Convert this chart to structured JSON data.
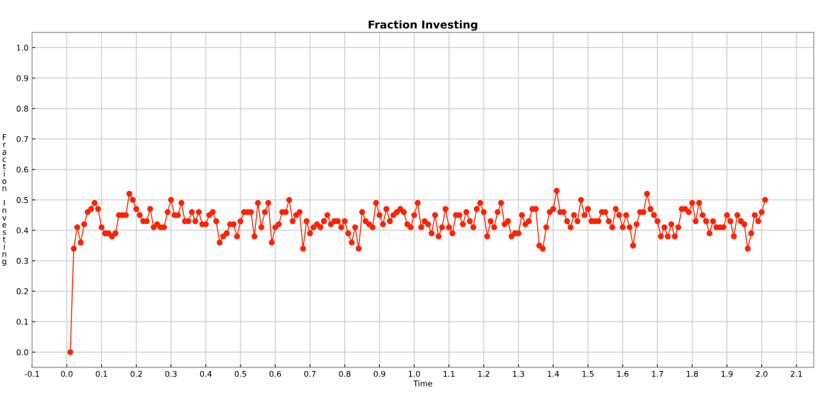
{
  "chart_data": {
    "type": "line",
    "title": "Fraction Investing",
    "xlabel": "Time",
    "ylabel": "Fraction Investing",
    "x": [
      0.01,
      0.02,
      0.03,
      0.04,
      0.05,
      0.06,
      0.07,
      0.08,
      0.09,
      0.1,
      0.11,
      0.12,
      0.13,
      0.14,
      0.15,
      0.16,
      0.17,
      0.18,
      0.19,
      0.2,
      0.21,
      0.22,
      0.23,
      0.24,
      0.25,
      0.26,
      0.27,
      0.28,
      0.29,
      0.3,
      0.31,
      0.32,
      0.33,
      0.34,
      0.35,
      0.36,
      0.37,
      0.38,
      0.39,
      0.4,
      0.41,
      0.42,
      0.43,
      0.44,
      0.45,
      0.46,
      0.47,
      0.48,
      0.49,
      0.5,
      0.51,
      0.52,
      0.53,
      0.54,
      0.55,
      0.56,
      0.57,
      0.58,
      0.59,
      0.6,
      0.61,
      0.62,
      0.63,
      0.64,
      0.65,
      0.66,
      0.67,
      0.68,
      0.69,
      0.7,
      0.71,
      0.72,
      0.73,
      0.74,
      0.75,
      0.76,
      0.77,
      0.78,
      0.79,
      0.8,
      0.81,
      0.82,
      0.83,
      0.84,
      0.85,
      0.86,
      0.87,
      0.88,
      0.89,
      0.9,
      0.91,
      0.92,
      0.93,
      0.94,
      0.95,
      0.96,
      0.97,
      0.98,
      0.99,
      1.0,
      1.01,
      1.02,
      1.03,
      1.04,
      1.05,
      1.06,
      1.07,
      1.08,
      1.09,
      1.1,
      1.11,
      1.12,
      1.13,
      1.14,
      1.15,
      1.16,
      1.17,
      1.18,
      1.19,
      1.2,
      1.21,
      1.22,
      1.23,
      1.24,
      1.25,
      1.26,
      1.27,
      1.28,
      1.29,
      1.3,
      1.31,
      1.32,
      1.33,
      1.34,
      1.35,
      1.36,
      1.37,
      1.38,
      1.39,
      1.4,
      1.41,
      1.42,
      1.43,
      1.44,
      1.45,
      1.46,
      1.47,
      1.48,
      1.49,
      1.5,
      1.51,
      1.52,
      1.53,
      1.54,
      1.55,
      1.56,
      1.57,
      1.58,
      1.59,
      1.6,
      1.61,
      1.62,
      1.63,
      1.64,
      1.65,
      1.66,
      1.67,
      1.68,
      1.69,
      1.7,
      1.71,
      1.72,
      1.73,
      1.74,
      1.75,
      1.76,
      1.77,
      1.78,
      1.79,
      1.8,
      1.81,
      1.82,
      1.83,
      1.84,
      1.85,
      1.86,
      1.87,
      1.88,
      1.89,
      1.9,
      1.91,
      1.92,
      1.93,
      1.94,
      1.95,
      1.96,
      1.97,
      1.98,
      1.99,
      2.0,
      2.01
    ],
    "series": [
      {
        "color": "#ff2200",
        "values": [
          0,
          0.34,
          0.41,
          0.36,
          0.42,
          0.46,
          0.47,
          0.49,
          0.47,
          0.41,
          0.39,
          0.39,
          0.38,
          0.39,
          0.45,
          0.45,
          0.45,
          0.52,
          0.5,
          0.47,
          0.45,
          0.43,
          0.43,
          0.47,
          0.41,
          0.42,
          0.41,
          0.41,
          0.46,
          0.5,
          0.45,
          0.45,
          0.49,
          0.43,
          0.43,
          0.46,
          0.43,
          0.46,
          0.42,
          0.42,
          0.45,
          0.46,
          0.43,
          0.36,
          0.38,
          0.39,
          0.42,
          0.42,
          0.38,
          0.43,
          0.46,
          0.46,
          0.46,
          0.38,
          0.49,
          0.41,
          0.46,
          0.49,
          0.36,
          0.41,
          0.42,
          0.46,
          0.46,
          0.5,
          0.43,
          0.45,
          0.46,
          0.34,
          0.43,
          0.39,
          0.41,
          0.42,
          0.41,
          0.43,
          0.45,
          0.42,
          0.43,
          0.43,
          0.41,
          0.43,
          0.39,
          0.36,
          0.41,
          0.34,
          0.46,
          0.43,
          0.42,
          0.41,
          0.49,
          0.45,
          0.42,
          0.47,
          0.43,
          0.45,
          0.46,
          0.47,
          0.46,
          0.42,
          0.41,
          0.45,
          0.49,
          0.41,
          0.43,
          0.42,
          0.39,
          0.45,
          0.38,
          0.41,
          0.47,
          0.41,
          0.39,
          0.45,
          0.45,
          0.42,
          0.46,
          0.43,
          0.41,
          0.47,
          0.49,
          0.46,
          0.38,
          0.43,
          0.41,
          0.46,
          0.49,
          0.42,
          0.43,
          0.38,
          0.39,
          0.39,
          0.45,
          0.42,
          0.43,
          0.47,
          0.47,
          0.35,
          0.34,
          0.41,
          0.46,
          0.47,
          0.53,
          0.46,
          0.46,
          0.43,
          0.41,
          0.45,
          0.43,
          0.5,
          0.45,
          0.47,
          0.43,
          0.43,
          0.43,
          0.46,
          0.46,
          0.43,
          0.41,
          0.47,
          0.45,
          0.41,
          0.45,
          0.41,
          0.35,
          0.42,
          0.46,
          0.46,
          0.52,
          0.47,
          0.45,
          0.43,
          0.38,
          0.41,
          0.38,
          0.42,
          0.38,
          0.41,
          0.47,
          0.47,
          0.46,
          0.49,
          0.43,
          0.49,
          0.45,
          0.43,
          0.39,
          0.43,
          0.41,
          0.41,
          0.41,
          0.45,
          0.43,
          0.38,
          0.45,
          0.43,
          0.42,
          0.34,
          0.39,
          0.45,
          0.43,
          0.46,
          0.5
        ]
      }
    ],
    "xlim": [
      -0.1,
      2.15
    ],
    "ylim": [
      -0.05,
      1.05
    ],
    "xticks": [
      -0.1,
      {
        "value": 0,
        "label": "0.0"
      },
      0.1,
      0.2,
      0.3,
      0.4,
      0.5,
      0.6,
      0.7,
      0.8,
      0.9,
      {
        "value": 1,
        "label": "1.0"
      },
      1.1,
      1.2,
      1.3,
      1.4,
      1.5,
      1.6,
      1.7,
      1.8,
      1.9,
      {
        "value": 2,
        "label": "2.0"
      },
      2.1
    ],
    "yticks": [
      {
        "value": 0,
        "label": "0.0"
      },
      0.1,
      0.2,
      0.3,
      0.4,
      0.5,
      0.6,
      0.7,
      0.8,
      0.9,
      {
        "value": 1,
        "label": "1.0"
      }
    ],
    "grid": true,
    "marker": "circle",
    "line_style": "solid",
    "legend": false
  }
}
